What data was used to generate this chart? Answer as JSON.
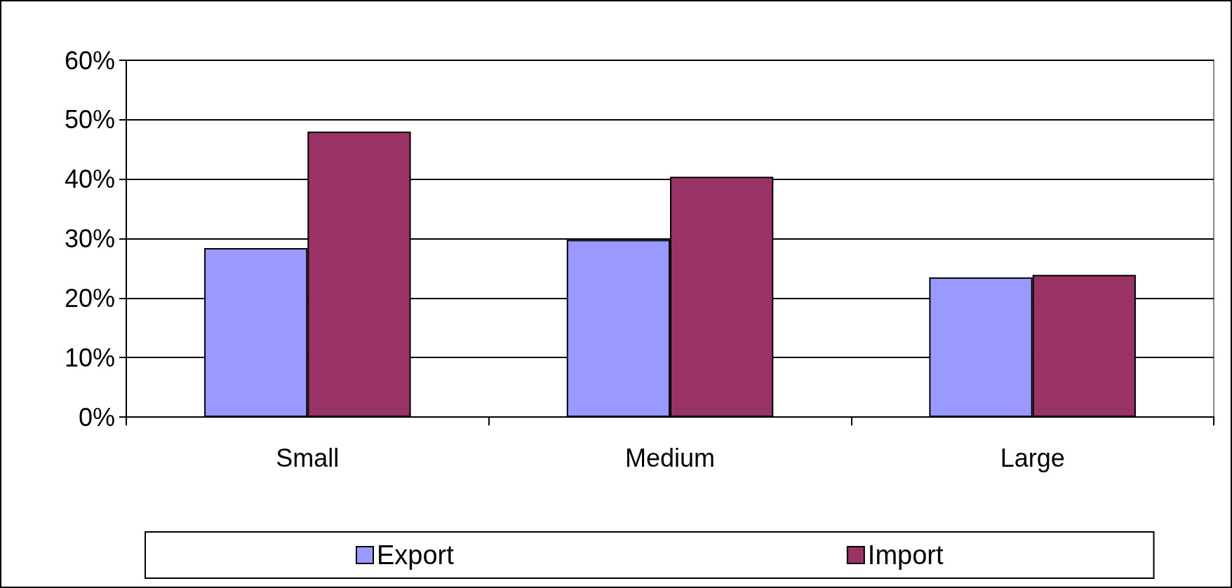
{
  "chart_data": {
    "type": "bar",
    "categories": [
      "Small",
      "Medium",
      "Large"
    ],
    "series": [
      {
        "name": "Export",
        "color": "#9999ff",
        "values": [
          28.4,
          29.8,
          23.5
        ]
      },
      {
        "name": "Import",
        "color": "#993366",
        "values": [
          48,
          40.4,
          23.9
        ]
      }
    ],
    "ylim": [
      0,
      60
    ],
    "yticks": [
      {
        "value": 0,
        "label": "0%"
      },
      {
        "value": 10,
        "label": "10%"
      },
      {
        "value": 20,
        "label": "20%"
      },
      {
        "value": 30,
        "label": "30%"
      },
      {
        "value": 40,
        "label": "40%"
      },
      {
        "value": 50,
        "label": "50%"
      },
      {
        "value": 60,
        "label": "60%"
      }
    ],
    "grid": "y",
    "legend": "bottom"
  }
}
